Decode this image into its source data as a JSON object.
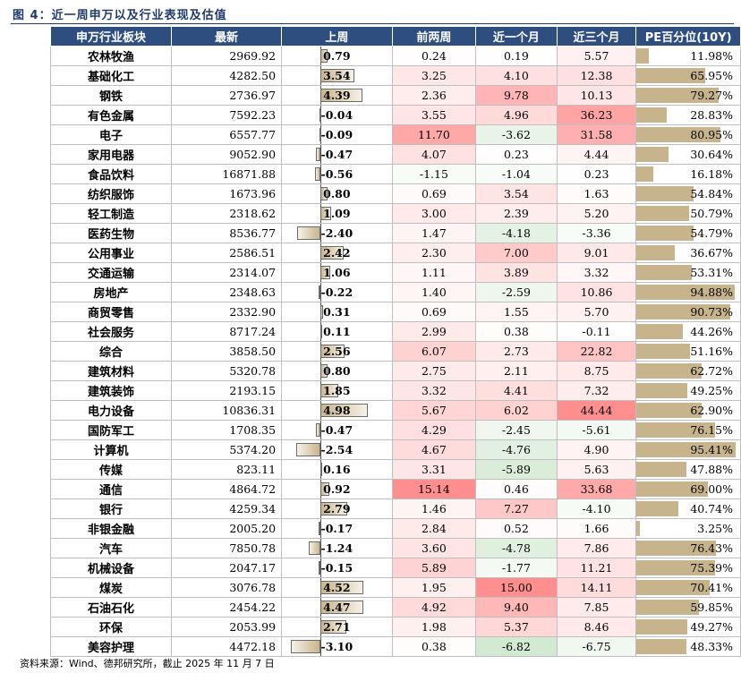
{
  "caption": "图 4：近一周申万以及行业表现及估值",
  "headers": [
    "申万行业板块",
    "最新",
    "上周",
    "前两周",
    "近一个月",
    "近三个月",
    "PE百分位(10Y)"
  ],
  "colors": {
    "header_bg": "#2e4e80",
    "pos_strong": "#f28e8e",
    "neg_strong": "#9fd19c",
    "pe_bar": "#c7b48d"
  },
  "rows": [
    {
      "name": "农林牧渔",
      "latest": "2969.92",
      "w1": "0.79",
      "w2": "0.24",
      "m1": "0.19",
      "m3": "5.57",
      "pe": "11.98%"
    },
    {
      "name": "基础化工",
      "latest": "4282.50",
      "w1": "3.54",
      "w2": "3.25",
      "m1": "4.10",
      "m3": "12.38",
      "pe": "65.95%"
    },
    {
      "name": "钢铁",
      "latest": "2736.97",
      "w1": "4.39",
      "w2": "2.36",
      "m1": "9.78",
      "m3": "10.13",
      "pe": "79.27%"
    },
    {
      "name": "有色金属",
      "latest": "7592.23",
      "w1": "-0.04",
      "w2": "3.55",
      "m1": "4.96",
      "m3": "36.23",
      "pe": "28.83%"
    },
    {
      "name": "电子",
      "latest": "6557.77",
      "w1": "-0.09",
      "w2": "11.70",
      "m1": "-3.62",
      "m3": "31.58",
      "pe": "80.95%"
    },
    {
      "name": "家用电器",
      "latest": "9052.90",
      "w1": "-0.47",
      "w2": "4.07",
      "m1": "0.23",
      "m3": "4.44",
      "pe": "30.64%"
    },
    {
      "name": "食品饮料",
      "latest": "16871.88",
      "w1": "-0.56",
      "w2": "-1.15",
      "m1": "-1.04",
      "m3": "0.23",
      "pe": "16.18%"
    },
    {
      "name": "纺织服饰",
      "latest": "1673.96",
      "w1": "0.80",
      "w2": "0.69",
      "m1": "3.54",
      "m3": "1.63",
      "pe": "54.84%"
    },
    {
      "name": "轻工制造",
      "latest": "2318.62",
      "w1": "1.09",
      "w2": "3.00",
      "m1": "2.39",
      "m3": "5.20",
      "pe": "50.79%"
    },
    {
      "name": "医药生物",
      "latest": "8536.77",
      "w1": "-2.40",
      "w2": "1.47",
      "m1": "-4.18",
      "m3": "-3.36",
      "pe": "54.79%"
    },
    {
      "name": "公用事业",
      "latest": "2586.51",
      "w1": "2.42",
      "w2": "2.30",
      "m1": "7.00",
      "m3": "9.01",
      "pe": "36.67%"
    },
    {
      "name": "交通运输",
      "latest": "2314.07",
      "w1": "1.06",
      "w2": "1.11",
      "m1": "3.89",
      "m3": "3.32",
      "pe": "53.31%"
    },
    {
      "name": "房地产",
      "latest": "2348.63",
      "w1": "-0.22",
      "w2": "1.40",
      "m1": "-2.59",
      "m3": "10.86",
      "pe": "94.88%"
    },
    {
      "name": "商贸零售",
      "latest": "2332.90",
      "w1": "0.31",
      "w2": "0.69",
      "m1": "1.55",
      "m3": "5.70",
      "pe": "90.73%"
    },
    {
      "name": "社会服务",
      "latest": "8717.24",
      "w1": "0.11",
      "w2": "2.99",
      "m1": "0.38",
      "m3": "-0.11",
      "pe": "44.26%"
    },
    {
      "name": "综合",
      "latest": "3858.50",
      "w1": "2.56",
      "w2": "6.07",
      "m1": "2.73",
      "m3": "22.82",
      "pe": "51.16%"
    },
    {
      "name": "建筑材料",
      "latest": "5320.78",
      "w1": "0.80",
      "w2": "2.75",
      "m1": "2.11",
      "m3": "8.75",
      "pe": "62.72%"
    },
    {
      "name": "建筑装饰",
      "latest": "2193.15",
      "w1": "1.85",
      "w2": "3.32",
      "m1": "4.41",
      "m3": "7.32",
      "pe": "49.25%"
    },
    {
      "name": "电力设备",
      "latest": "10836.31",
      "w1": "4.98",
      "w2": "5.67",
      "m1": "6.02",
      "m3": "44.44",
      "pe": "62.90%"
    },
    {
      "name": "国防军工",
      "latest": "1708.35",
      "w1": "-0.47",
      "w2": "4.29",
      "m1": "-2.45",
      "m3": "-5.61",
      "pe": "76.15%"
    },
    {
      "name": "计算机",
      "latest": "5374.20",
      "w1": "-2.54",
      "w2": "4.67",
      "m1": "-4.76",
      "m3": "4.90",
      "pe": "95.41%"
    },
    {
      "name": "传媒",
      "latest": "823.11",
      "w1": "0.16",
      "w2": "3.31",
      "m1": "-5.89",
      "m3": "5.63",
      "pe": "47.88%"
    },
    {
      "name": "通信",
      "latest": "4864.72",
      "w1": "0.92",
      "w2": "15.14",
      "m1": "0.46",
      "m3": "33.68",
      "pe": "69.00%"
    },
    {
      "name": "银行",
      "latest": "4259.34",
      "w1": "2.79",
      "w2": "1.46",
      "m1": "7.27",
      "m3": "-4.10",
      "pe": "40.74%"
    },
    {
      "name": "非银金融",
      "latest": "2005.20",
      "w1": "-0.17",
      "w2": "2.84",
      "m1": "0.52",
      "m3": "1.66",
      "pe": "3.25%"
    },
    {
      "name": "汽车",
      "latest": "7850.78",
      "w1": "-1.24",
      "w2": "3.60",
      "m1": "-4.78",
      "m3": "7.86",
      "pe": "76.43%"
    },
    {
      "name": "机械设备",
      "latest": "2047.17",
      "w1": "-0.15",
      "w2": "5.89",
      "m1": "-1.77",
      "m3": "11.21",
      "pe": "75.39%"
    },
    {
      "name": "煤炭",
      "latest": "3076.78",
      "w1": "4.52",
      "w2": "1.95",
      "m1": "15.00",
      "m3": "14.11",
      "pe": "70.41%"
    },
    {
      "name": "石油石化",
      "latest": "2454.22",
      "w1": "4.47",
      "w2": "4.92",
      "m1": "9.40",
      "m3": "7.85",
      "pe": "59.85%"
    },
    {
      "name": "环保",
      "latest": "2053.99",
      "w1": "2.71",
      "w2": "1.98",
      "m1": "5.37",
      "m3": "8.46",
      "pe": "49.27%"
    },
    {
      "name": "美容护理",
      "latest": "4472.18",
      "w1": "-3.10",
      "w2": "0.38",
      "m1": "-6.82",
      "m3": "-6.75",
      "pe": "48.33%"
    }
  ],
  "source": "资料来源：Wind、德邦研究所，截止 2025 年 11 月 7 日"
}
